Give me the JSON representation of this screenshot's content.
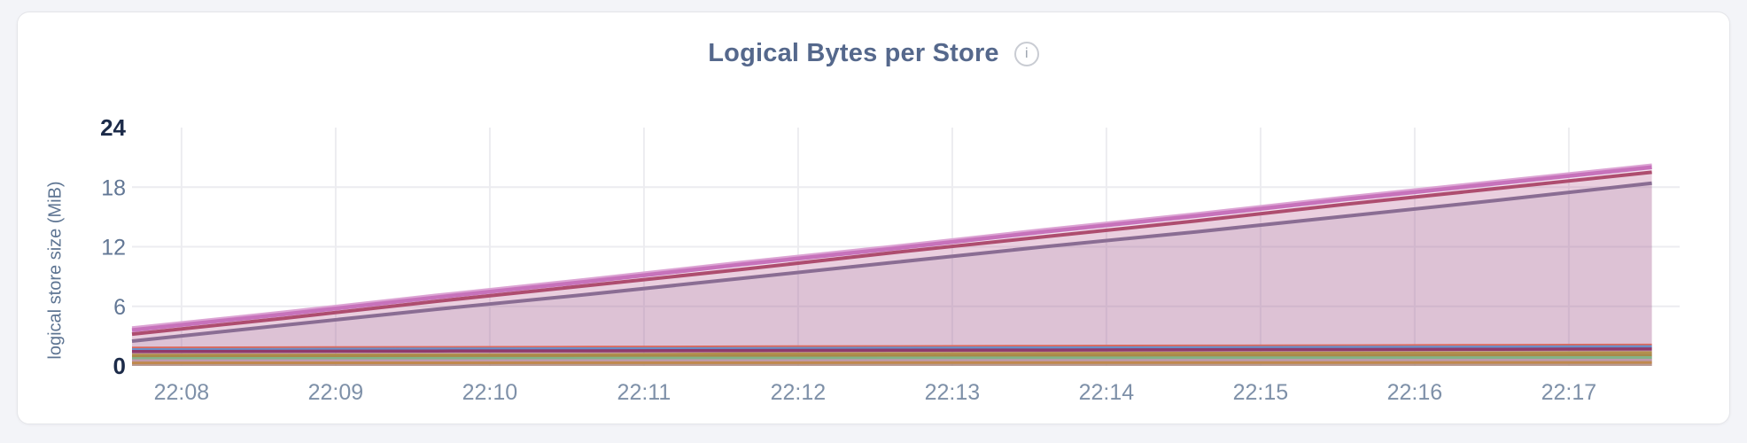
{
  "page": {
    "background": "#f3f4f8",
    "card_background": "#ffffff",
    "card_border": "#e4e5e9"
  },
  "header": {
    "title": "Logical Bytes per Store",
    "info_glyph": "i",
    "title_color": "#55688c",
    "info_icon": "info-icon"
  },
  "chart_data": {
    "type": "area",
    "title": "Logical Bytes per Store",
    "xlabel": "",
    "ylabel": "logical store size (MiB)",
    "x_ticks": [
      "22:08",
      "22:09",
      "22:10",
      "22:11",
      "22:12",
      "22:13",
      "22:14",
      "22:15",
      "22:16",
      "22:17"
    ],
    "y_ticks": [
      0,
      6,
      12,
      18,
      24
    ],
    "ylim": [
      0,
      24
    ],
    "grid": true,
    "legend": "none",
    "colors": {
      "gridline": "#ececf0",
      "x_tick_label": "#7e90a8",
      "y_tick_label": "#627795",
      "y_tick_label_strong": "#1c2b49",
      "axis_label": "#5d7492"
    },
    "plot": {
      "tick_start_frac": 0.032,
      "tick_step_frac": 0.0996,
      "data_end_frac": 0.982,
      "fill_opacity": 0.13
    },
    "series": [
      {
        "color": "#6f6b8d",
        "width": 4,
        "values": [
          2.5,
          4.1,
          5.7,
          7.2,
          8.8,
          10.4,
          12.0,
          13.5,
          15.1,
          16.7,
          18.4
        ]
      },
      {
        "color": "#a43b55",
        "width": 4,
        "values": [
          3.2,
          4.8,
          6.5,
          8.1,
          9.7,
          11.4,
          13.0,
          14.6,
          16.3,
          17.9,
          19.5
        ]
      },
      {
        "color": "#dca4d4",
        "width": 3,
        "values": [
          3.85,
          5.45,
          7.15,
          8.75,
          10.45,
          12.05,
          13.75,
          15.35,
          17.05,
          18.65,
          20.25
        ]
      },
      {
        "color": "#c772bb",
        "width": 4.5,
        "values": [
          3.6,
          5.2,
          6.9,
          8.5,
          10.2,
          11.8,
          13.5,
          15.1,
          16.8,
          18.4,
          20.0
        ]
      },
      {
        "color": "#dc685b",
        "width": 2,
        "values": [
          1.85,
          1.88,
          1.91,
          1.94,
          1.97,
          2.0,
          2.03,
          2.06,
          2.09,
          2.12,
          2.15
        ]
      },
      {
        "color": "#6a8fc8",
        "width": 3,
        "values": [
          1.65,
          1.68,
          1.71,
          1.74,
          1.77,
          1.8,
          1.83,
          1.86,
          1.89,
          1.92,
          1.95
        ]
      },
      {
        "color": "#8e3a6b",
        "width": 3.5,
        "values": [
          1.45,
          1.47,
          1.5,
          1.52,
          1.55,
          1.58,
          1.6,
          1.63,
          1.65,
          1.68,
          1.7
        ]
      },
      {
        "color": "#b3914d",
        "width": 3,
        "values": [
          1.1,
          1.11,
          1.12,
          1.13,
          1.22,
          1.25,
          1.27,
          1.29,
          1.31,
          1.33,
          1.35
        ]
      },
      {
        "color": "#a8894a",
        "width": 3,
        "values": [
          0.95,
          0.96,
          0.98,
          0.99,
          1.0,
          1.02,
          1.03,
          1.05,
          1.06,
          1.08,
          1.1
        ]
      },
      {
        "color": "#83b389",
        "width": 3,
        "values": [
          0.75,
          0.76,
          0.77,
          0.78,
          0.79,
          0.8,
          0.81,
          0.82,
          0.83,
          0.84,
          0.85
        ]
      },
      {
        "color": "#c09aac",
        "width": 2.5,
        "values": [
          0.55,
          0.56,
          0.56,
          0.57,
          0.57,
          0.58,
          0.58,
          0.59,
          0.59,
          0.6,
          0.6
        ]
      },
      {
        "color": "#c0894e",
        "width": 3,
        "values": [
          0.3,
          0.31,
          0.31,
          0.32,
          0.32,
          0.33,
          0.33,
          0.34,
          0.34,
          0.35,
          0.35
        ]
      }
    ]
  }
}
